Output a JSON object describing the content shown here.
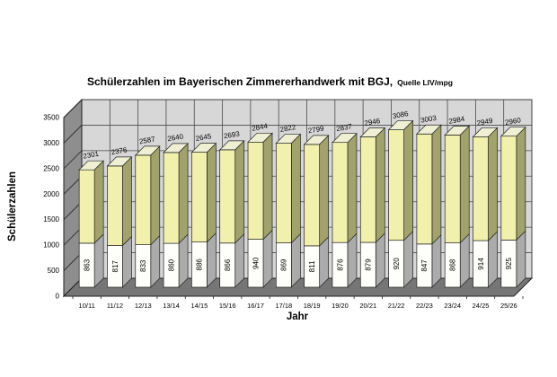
{
  "title": {
    "main": "Schülerzahlen im Bayerischen Zimmererhandwerk mit BGJ,",
    "source": "Quelle LIV/mpg"
  },
  "chart_data": {
    "type": "bar",
    "variant": "3d-stacked-column",
    "title": "Schülerzahlen im Bayerischen Zimmererhandwerk mit BGJ",
    "subtitle": "Quelle LIV/mpg",
    "xlabel": "Jahr",
    "ylabel": "Schülerzahlen",
    "ylim": [
      0,
      3500
    ],
    "yticks": [
      0,
      500,
      1000,
      1500,
      2000,
      2500,
      3000,
      3500
    ],
    "legend": "none",
    "grid": "on",
    "categories": [
      "10/11",
      "11/12",
      "12/13",
      "13/14",
      "14/15",
      "15/16",
      "16/17",
      "17/18",
      "18/19",
      "19/20",
      "20/21",
      "21/22",
      "22/23",
      "23/24",
      "24/25",
      "25/26"
    ],
    "totals": [
      2301,
      2376,
      2587,
      2640,
      2645,
      2693,
      2844,
      2822,
      2799,
      2837,
      2946,
      3086,
      3003,
      2984,
      2949,
      2960
    ],
    "bottom_segments": [
      863,
      817,
      833,
      860,
      886,
      866,
      940,
      869,
      811,
      876,
      879,
      920,
      847,
      868,
      914,
      925
    ],
    "colors": {
      "column_front": "#F1F0AC",
      "column_side": "#A2A26C",
      "column_top": "#EFEFD4",
      "base_front": "#FEFEFA",
      "base_side": "#ABABAB",
      "wall_back": "#D7D7D7",
      "wall_left": "#8E8E8E",
      "floor": "#767676",
      "grid": "#4a4a4a",
      "line": "#222222",
      "text": "#000000",
      "background": "#ffffff"
    }
  }
}
